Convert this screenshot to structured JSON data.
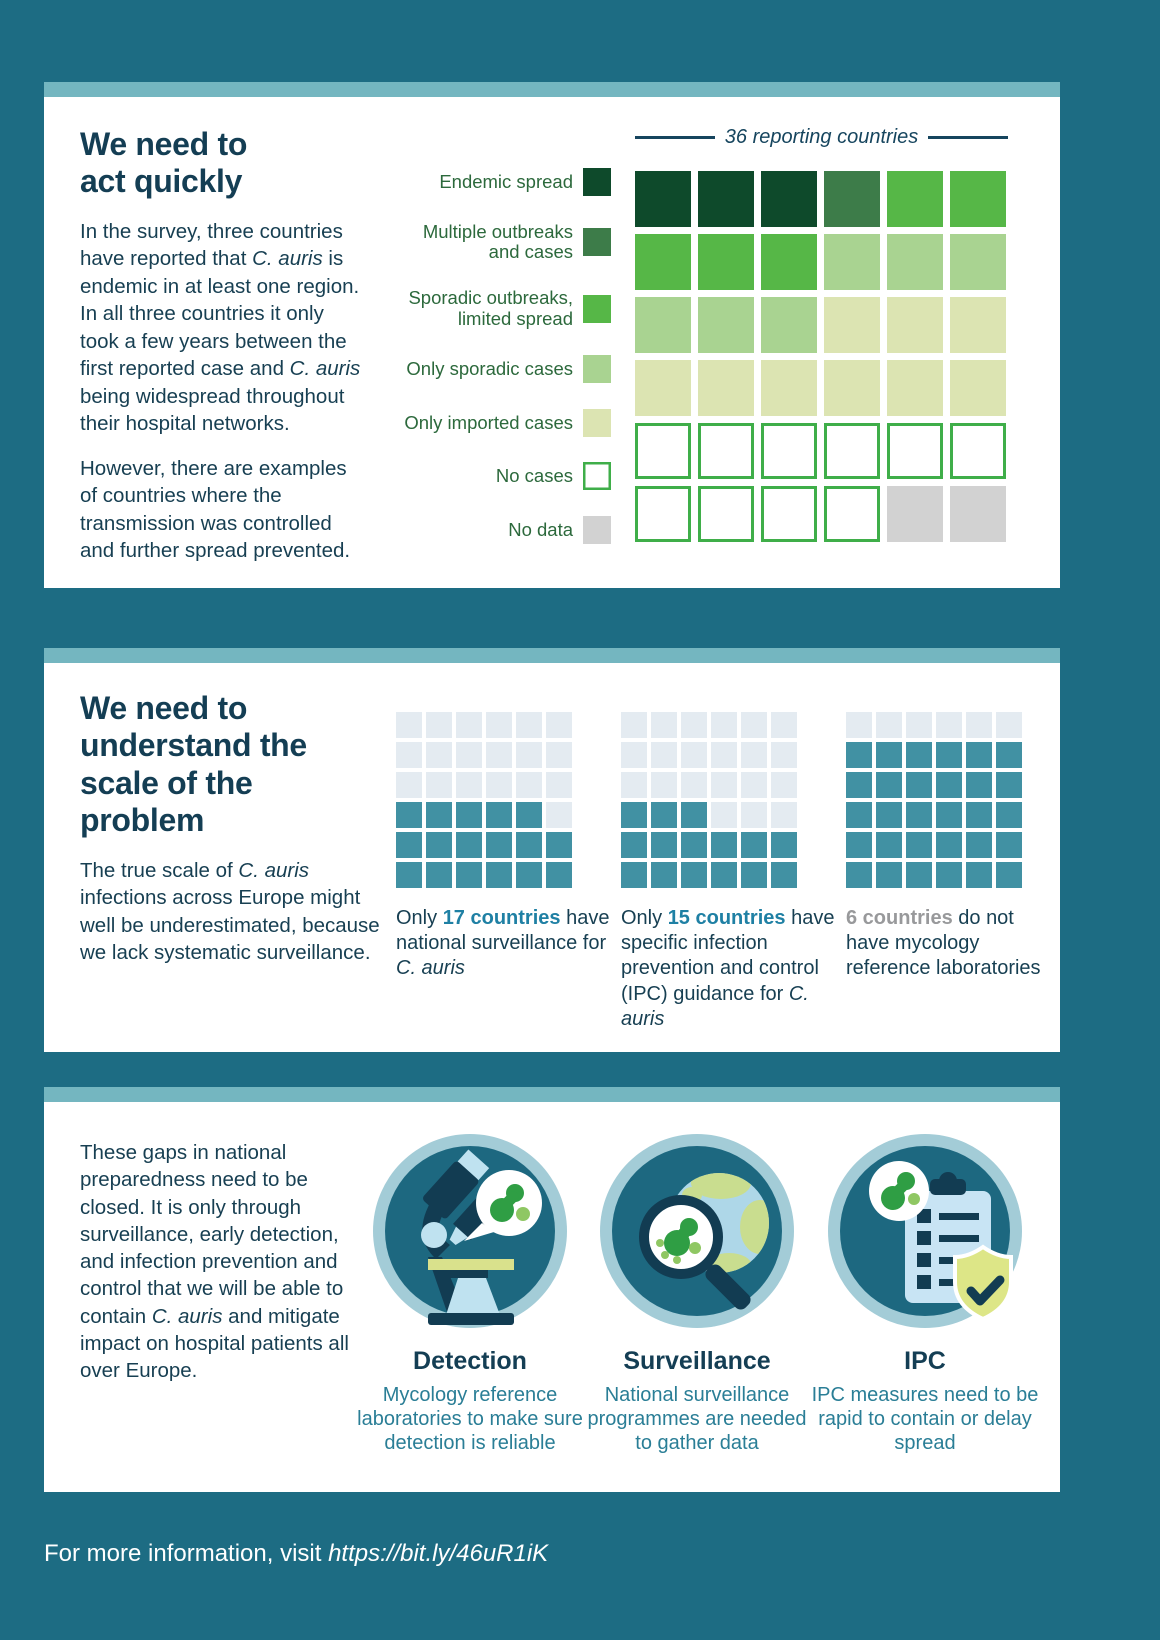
{
  "colors": {
    "background_teal": "#1d6c83",
    "panel_strip_teal": "#74b6c0",
    "navy_text": "#173f52",
    "legend_green_text": "#2c693c",
    "accent_teal_bold": "#1f80a4",
    "gray_bold": "#98999b",
    "waffle_fill_teal": "#4191a3",
    "waffle_empty": "#e4ebf1"
  },
  "panel1": {
    "title": "We need to\nact quickly",
    "para1_html": "In the survey, three countries have reported that <i>C. auris</i> is endemic in at least one region. In all three countries it only took a few years between the first reported case and <i>C. auris</i> being widespread throughout their hospital networks.",
    "para2": "However, there are examples of countries where the transmission was controlled and further spread prevented."
  },
  "panel2": {
    "title": "We need to\nunderstand the\nscale of the problem",
    "body_html": "The true scale of <i>C. auris</i> infections across Europe might well be underestimated, because we lack systematic surveillance."
  },
  "panel3": {
    "body_html": "These gaps in national preparedness need to be closed. It is only through surveillance, early detection, and infection prevention and control that we will be able to contain <i>C. auris</i> and mitigate impact on hospital patients all over Europe.",
    "items": [
      {
        "icon": "detection-icon",
        "title": "Detection",
        "desc": "Mycology reference laboratories to make sure detection is reliable"
      },
      {
        "icon": "surveillance-icon",
        "title": "Surveillance",
        "desc": "National surveillance programmes are needed to gather data"
      },
      {
        "icon": "ipc-icon",
        "title": "IPC",
        "desc": "IPC measures need to be rapid to contain or delay spread"
      }
    ]
  },
  "footer": {
    "text_html": "For more information, visit <i>https://bit.ly/46uR1iK</i>"
  },
  "chart_data": [
    {
      "type": "waffle",
      "title": "36 reporting countries",
      "grid": [
        6,
        6
      ],
      "total": 36,
      "legend_position": "left",
      "categories": [
        {
          "label": "Endemic spread",
          "count": 3,
          "color": "#0e4a2b"
        },
        {
          "label": "Multiple outbreaks\nand cases",
          "count": 1,
          "color": "#3d7c49"
        },
        {
          "label": "Sporadic outbreaks,\nlimited spread",
          "count": 5,
          "color": "#56b747"
        },
        {
          "label": "Only sporadic cases",
          "count": 6,
          "color": "#a9d391"
        },
        {
          "label": "Only imported cases",
          "count": 9,
          "color": "#dce4b2"
        },
        {
          "label": "No cases",
          "count": 10,
          "color": "#ffffff",
          "border": "#3fae49"
        },
        {
          "label": "No data",
          "count": 2,
          "color": "#d2d2d2"
        }
      ],
      "cells": [
        0,
        0,
        0,
        1,
        2,
        2,
        2,
        2,
        2,
        3,
        3,
        3,
        3,
        3,
        3,
        4,
        4,
        4,
        4,
        4,
        4,
        4,
        4,
        4,
        5,
        5,
        5,
        5,
        5,
        5,
        5,
        5,
        5,
        5,
        6,
        6
      ]
    },
    {
      "type": "waffle",
      "grid": [
        6,
        6
      ],
      "total": 36,
      "filled": 17,
      "fill_color": "#4191a3",
      "empty_color": "#e4ebf1",
      "cells": [
        0,
        0,
        0,
        0,
        0,
        0,
        0,
        0,
        0,
        0,
        0,
        0,
        0,
        0,
        0,
        0,
        0,
        0,
        1,
        1,
        1,
        1,
        1,
        0,
        1,
        1,
        1,
        1,
        1,
        1,
        1,
        1,
        1,
        1,
        1,
        1
      ],
      "caption_html": "Only <b>17 countries</b> have national surveillance for <i>C. auris</i>"
    },
    {
      "type": "waffle",
      "grid": [
        6,
        6
      ],
      "total": 36,
      "filled": 15,
      "fill_color": "#4191a3",
      "empty_color": "#e4ebf1",
      "cells": [
        0,
        0,
        0,
        0,
        0,
        0,
        0,
        0,
        0,
        0,
        0,
        0,
        0,
        0,
        0,
        0,
        0,
        0,
        1,
        1,
        1,
        0,
        0,
        0,
        1,
        1,
        1,
        1,
        1,
        1,
        1,
        1,
        1,
        1,
        1,
        1
      ],
      "caption_html": "Only <b>15 countries</b> have specific infection prevention and control (IPC) guidance for <i>C. auris</i>"
    },
    {
      "type": "waffle",
      "grid": [
        6,
        6
      ],
      "total": 36,
      "empty_highlight": 6,
      "fill_color": "#4191a3",
      "empty_color": "#e4ebf1",
      "cells": [
        0,
        0,
        0,
        0,
        0,
        0,
        1,
        1,
        1,
        1,
        1,
        1,
        1,
        1,
        1,
        1,
        1,
        1,
        1,
        1,
        1,
        1,
        1,
        1,
        1,
        1,
        1,
        1,
        1,
        1,
        1,
        1,
        1,
        1,
        1,
        1
      ],
      "caption_html": "<b>6 countries</b> do not have mycology reference laboratories"
    }
  ]
}
